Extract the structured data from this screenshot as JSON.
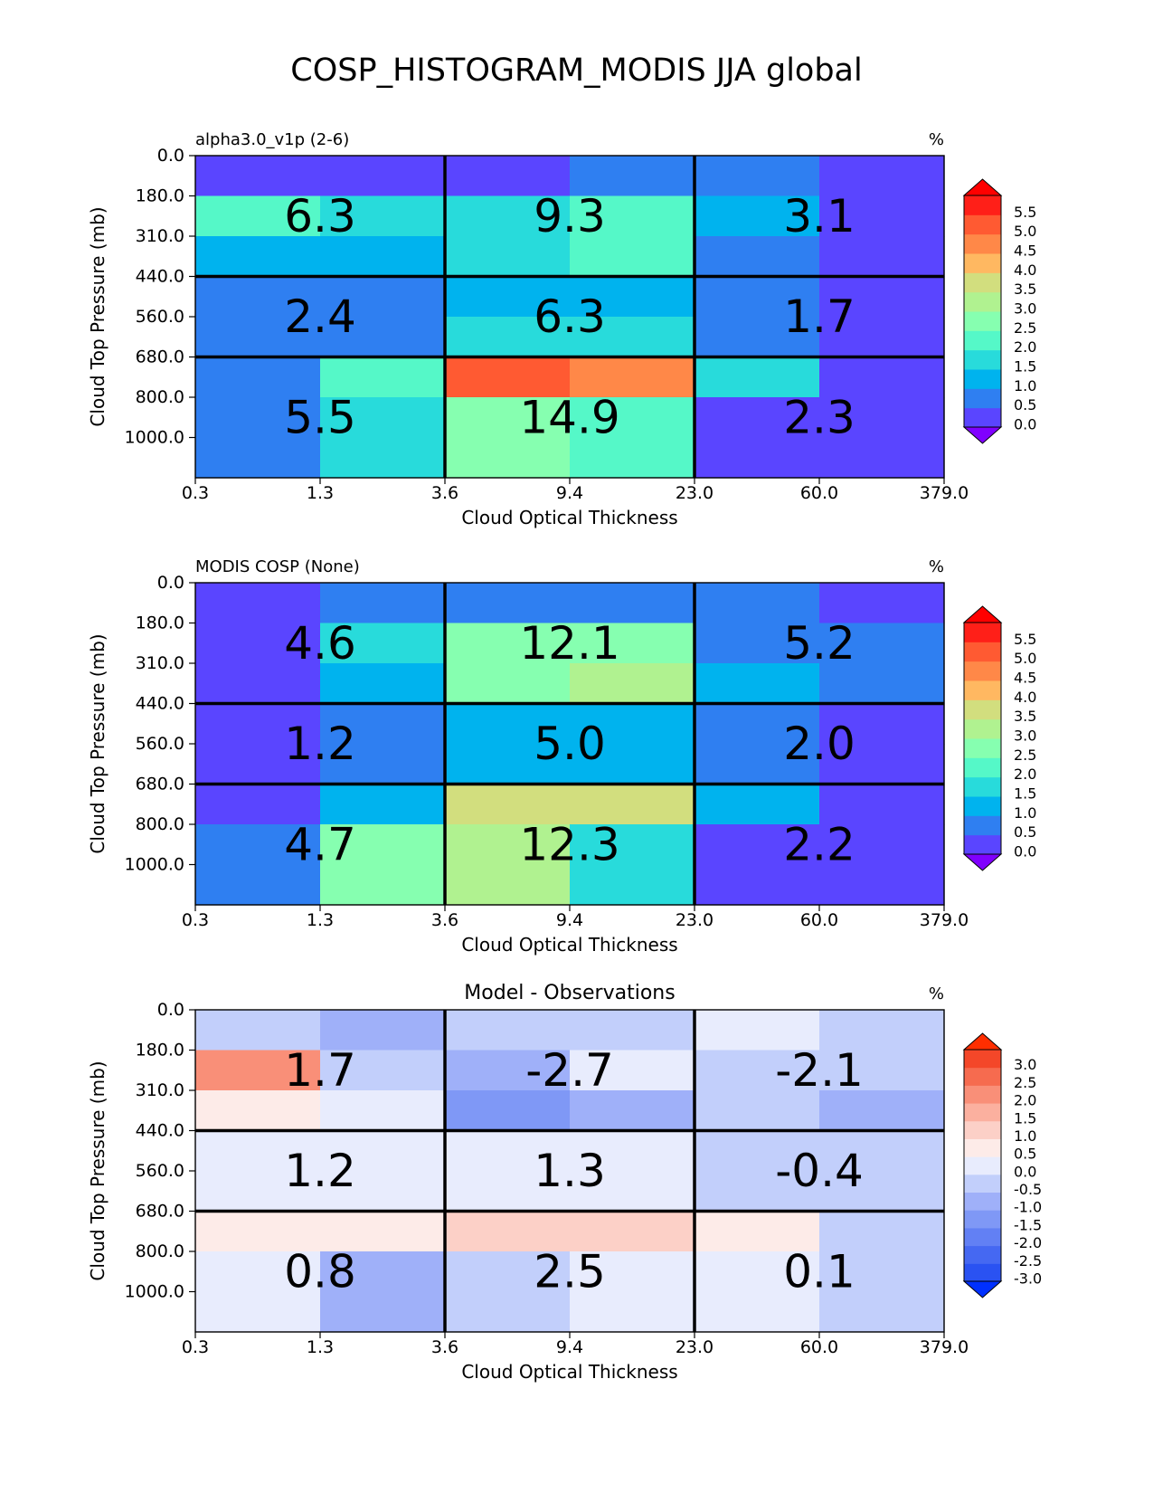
{
  "figure_title": "COSP_HISTOGRAM_MODIS JJA global",
  "chart_data": [
    {
      "type": "heatmap",
      "title": "alpha3.0_v1p (2-6)",
      "units": "%",
      "xlabel": "Cloud Optical Thickness",
      "ylabel": "Cloud Top Pressure (mb)",
      "x_tick_labels": [
        "0.3",
        "1.3",
        "3.6",
        "9.4",
        "23.0",
        "60.0",
        "379.0"
      ],
      "y_tick_labels": [
        "0.0",
        "180.0",
        "310.0",
        "440.0",
        "560.0",
        "680.0",
        "800.0",
        "1000.0"
      ],
      "values": [
        [
          0.0,
          0.0,
          0.0,
          0.8,
          0.8,
          0.0
        ],
        [
          2.2,
          1.8,
          1.8,
          2.3,
          1.3,
          0.0
        ],
        [
          1.3,
          1.3,
          1.8,
          2.3,
          0.8,
          0.0
        ],
        [
          0.8,
          0.8,
          1.3,
          1.3,
          0.8,
          0.0
        ],
        [
          0.8,
          0.8,
          1.8,
          1.8,
          0.8,
          0.0
        ],
        [
          0.8,
          2.2,
          5.2,
          4.8,
          1.8,
          0.0
        ],
        [
          0.8,
          1.8,
          2.8,
          2.3,
          0.0,
          0.0
        ]
      ],
      "block_totals": [
        [
          "6.3",
          "9.3",
          "3.1"
        ],
        [
          "2.4",
          "6.3",
          "1.7"
        ],
        [
          "5.5",
          "14.9",
          "2.3"
        ]
      ],
      "colorbar": {
        "tick_labels": [
          "0.0",
          "0.5",
          "1.0",
          "1.5",
          "2.0",
          "2.5",
          "3.0",
          "3.5",
          "4.0",
          "4.5",
          "5.0",
          "5.5"
        ],
        "colors": [
          "#5a45ff",
          "#2f7ff1",
          "#00b3ee",
          "#28dbdb",
          "#55f8c8",
          "#86ffb0",
          "#b0f290",
          "#d2de7e",
          "#ffb861",
          "#ff8848",
          "#ff5a32",
          "#ff1f18"
        ],
        "under_color": "#8000ff",
        "over_color": "#ff0000"
      }
    },
    {
      "type": "heatmap",
      "title": "MODIS COSP (None)",
      "units": "%",
      "xlabel": "Cloud Optical Thickness",
      "ylabel": "Cloud Top Pressure (mb)",
      "x_tick_labels": [
        "0.3",
        "1.3",
        "3.6",
        "9.4",
        "23.0",
        "60.0",
        "379.0"
      ],
      "y_tick_labels": [
        "0.0",
        "180.0",
        "310.0",
        "440.0",
        "560.0",
        "680.0",
        "800.0",
        "1000.0"
      ],
      "values": [
        [
          0.0,
          0.8,
          0.8,
          0.8,
          0.8,
          0.0
        ],
        [
          0.0,
          1.8,
          2.8,
          2.8,
          0.8,
          0.8
        ],
        [
          0.0,
          1.3,
          2.8,
          3.3,
          1.3,
          0.8
        ],
        [
          0.0,
          0.8,
          1.3,
          1.3,
          0.8,
          0.0
        ],
        [
          0.0,
          0.8,
          1.3,
          1.3,
          0.8,
          0.0
        ],
        [
          0.0,
          1.3,
          3.8,
          3.8,
          1.3,
          0.0
        ],
        [
          0.8,
          2.8,
          3.3,
          1.8,
          0.0,
          0.0
        ]
      ],
      "block_totals": [
        [
          "4.6",
          "12.1",
          "5.2"
        ],
        [
          "1.2",
          "5.0",
          "2.0"
        ],
        [
          "4.7",
          "12.3",
          "2.2"
        ]
      ],
      "colorbar": {
        "tick_labels": [
          "0.0",
          "0.5",
          "1.0",
          "1.5",
          "2.0",
          "2.5",
          "3.0",
          "3.5",
          "4.0",
          "4.5",
          "5.0",
          "5.5"
        ],
        "colors": [
          "#5a45ff",
          "#2f7ff1",
          "#00b3ee",
          "#28dbdb",
          "#55f8c8",
          "#86ffb0",
          "#b0f290",
          "#d2de7e",
          "#ffb861",
          "#ff8848",
          "#ff5a32",
          "#ff1f18"
        ],
        "under_color": "#8000ff",
        "over_color": "#ff0000"
      }
    },
    {
      "type": "heatmap",
      "title": "Model - Observations",
      "units": "%",
      "xlabel": "Cloud Optical Thickness",
      "ylabel": "Cloud Top Pressure (mb)",
      "x_tick_labels": [
        "0.3",
        "1.3",
        "3.6",
        "9.4",
        "23.0",
        "60.0",
        "379.0"
      ],
      "y_tick_labels": [
        "0.0",
        "180.0",
        "310.0",
        "440.0",
        "560.0",
        "680.0",
        "800.0",
        "1000.0"
      ],
      "values": [
        [
          -0.2,
          -0.7,
          -0.2,
          -0.2,
          0.2,
          -0.2
        ],
        [
          2.2,
          -0.2,
          -0.7,
          0.2,
          -0.2,
          -0.2
        ],
        [
          0.7,
          0.2,
          -1.2,
          -0.7,
          -0.2,
          -0.7
        ],
        [
          0.2,
          0.2,
          0.2,
          0.2,
          -0.2,
          -0.2
        ],
        [
          0.2,
          0.2,
          0.2,
          0.2,
          -0.2,
          -0.2
        ],
        [
          0.7,
          0.7,
          1.2,
          1.2,
          0.7,
          -0.2
        ],
        [
          0.2,
          -0.7,
          -0.2,
          0.2,
          0.2,
          -0.2
        ]
      ],
      "block_totals": [
        [
          "1.7",
          "-2.7",
          "-2.1"
        ],
        [
          "1.2",
          "1.3",
          "-0.4"
        ],
        [
          "0.8",
          "2.5",
          "0.1"
        ]
      ],
      "colorbar": {
        "tick_labels": [
          "-3.0",
          "-2.5",
          "-2.0",
          "-1.5",
          "-1.0",
          "-0.5",
          "0.0",
          "0.5",
          "1.0",
          "1.5",
          "2.0",
          "2.5",
          "3.0"
        ],
        "colors": [
          "#2a52f2",
          "#4568f2",
          "#6280f4",
          "#7f98f6",
          "#9fb0f9",
          "#c2cffb",
          "#e8ecfd",
          "#fdebe8",
          "#fcd0c7",
          "#fbb09f",
          "#f98f78",
          "#f66b4f",
          "#f44729"
        ],
        "under_color": "#0030ff",
        "over_color": "#ff2e00"
      }
    }
  ]
}
